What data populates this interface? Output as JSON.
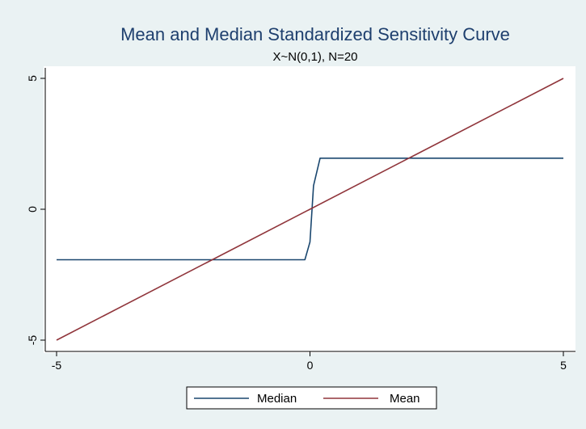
{
  "chart_data": {
    "type": "line",
    "title": "Mean and Median Standardized Sensitivity Curve",
    "subtitle": "X~N(0,1), N=20",
    "xlabel": "",
    "ylabel": "",
    "xlim": [
      -5,
      5
    ],
    "ylim": [
      -5,
      5
    ],
    "xticks": [
      "-5",
      "0",
      "5"
    ],
    "yticks": [
      "5",
      "0",
      "-5"
    ],
    "grid": false,
    "legend_position": "bottom",
    "series": [
      {
        "name": "Median",
        "color": "#1a476f",
        "x": [
          -5,
          -0.1,
          0,
          0.07,
          0.2,
          5
        ],
        "y": [
          -1.93,
          -1.93,
          -1.25,
          0.9,
          1.95,
          1.95
        ]
      },
      {
        "name": "Mean",
        "color": "#90353b",
        "x": [
          -5,
          5
        ],
        "y": [
          -5,
          5
        ]
      }
    ]
  },
  "colors": {
    "figure_background": "#eaf2f3",
    "plot_background": "#ffffff",
    "title_color": "#1e3f6e",
    "axis_color": "#000000"
  }
}
